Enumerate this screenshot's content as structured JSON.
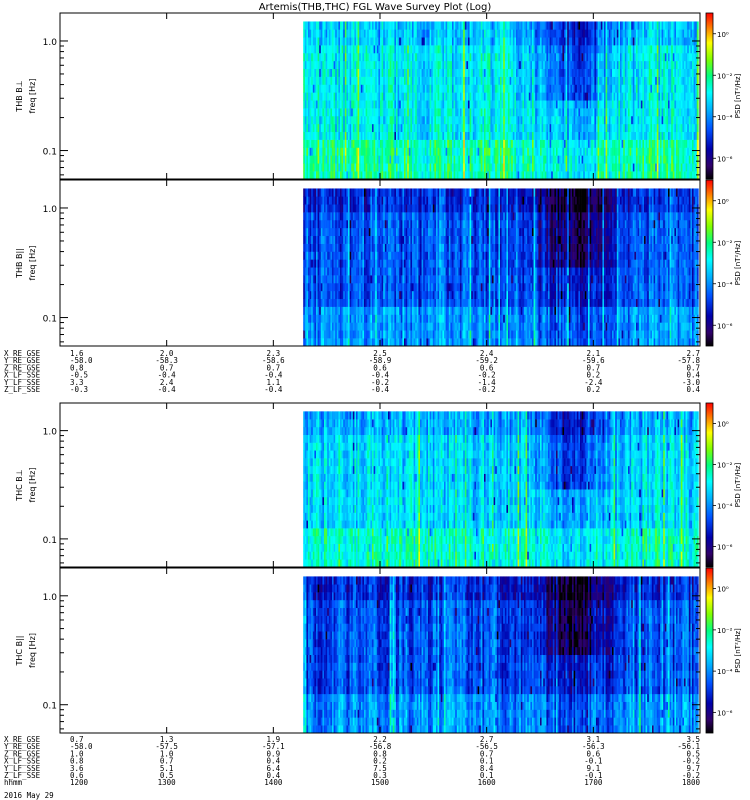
{
  "chart_data": {
    "type": "heatmap",
    "title": "Artemis(THB,THC) FGL Wave Survey Plot (Log)",
    "y_scale": "log",
    "ylim": [
      0.055,
      1.8
    ],
    "y_tick_labels": [
      "1.0",
      "0.1"
    ],
    "y_ticks": [
      1.0,
      0.1
    ],
    "colorbar": {
      "label": "PSD [nT²/Hz]",
      "scale": "log",
      "tick_labels": [
        "10⁰",
        "10⁻²",
        "10⁻⁴",
        "10⁻⁶"
      ],
      "tick_values": [
        1,
        0.01,
        0.0001,
        1e-06
      ],
      "colormap": [
        "#000000",
        "#30006a",
        "#0000aa",
        "#0050ff",
        "#00b4ff",
        "#00ffff",
        "#00ff80",
        "#80ff00",
        "#ffff00",
        "#ff8000",
        "#ff0000"
      ]
    },
    "panels": [
      {
        "ylabel_probe": "THB B⊥",
        "ylabel_unit": "freq [Hz]",
        "data_start_fraction": 0.38,
        "base_level": 0.5
      },
      {
        "ylabel_probe": "THB B||",
        "ylabel_unit": "freq [Hz]",
        "data_start_fraction": 0.38,
        "base_level": 0.3
      },
      {
        "ylabel_probe": "THC B⊥",
        "ylabel_unit": "freq [Hz]",
        "data_start_fraction": 0.38,
        "base_level": 0.48
      },
      {
        "ylabel_probe": "THC B||",
        "ylabel_unit": "freq [Hz]",
        "data_start_fraction": 0.38,
        "base_level": 0.3
      }
    ],
    "orbit_tables": [
      {
        "rows": [
          {
            "label": "X_RE_GSE",
            "values": [
              "1.6",
              "2.0",
              "2.3",
              "2.5",
              "2.4",
              "2.1",
              "2.7"
            ]
          },
          {
            "label": "Y_RE_GSE",
            "values": [
              "-58.0",
              "-58.3",
              "-58.6",
              "-58.9",
              "-59.2",
              "-59.6",
              "-57.8"
            ]
          },
          {
            "label": "Z_RE_GSE",
            "values": [
              "0.8",
              "0.7",
              "0.7",
              "0.6",
              "0.6",
              "0.7",
              "0.7"
            ]
          },
          {
            "label": "X_LF_SSE",
            "values": [
              "-0.5",
              "-0.4",
              "-0.4",
              "-0.4",
              "-0.2",
              "0.2",
              "0.4"
            ]
          },
          {
            "label": "Y_LF_SSE",
            "values": [
              "3.3",
              "2.4",
              "1.1",
              "-0.2",
              "-1.4",
              "-2.4",
              "-3.0"
            ]
          },
          {
            "label": "Z_LF_SSE",
            "values": [
              "-0.3",
              "-0.4",
              "-0.4",
              "-0.4",
              "-0.2",
              "0.2",
              "0.4"
            ]
          }
        ]
      },
      {
        "rows": [
          {
            "label": "X_RE_GSE",
            "values": [
              "0.7",
              "1.3",
              "1.9",
              "2.2",
              "2.7",
              "3.1",
              "3.5"
            ]
          },
          {
            "label": "Y_RE_GSE",
            "values": [
              "-58.0",
              "-57.5",
              "-57.1",
              "-56.8",
              "-56.5",
              "-56.3",
              "-56.1"
            ]
          },
          {
            "label": "Z_RE_GSE",
            "values": [
              "1.0",
              "1.0",
              "0.9",
              "0.8",
              "0.7",
              "0.6",
              "0.5"
            ]
          },
          {
            "label": "X_LF_SSE",
            "values": [
              "0.8",
              "0.7",
              "0.4",
              "0.2",
              "0.1",
              "-0.1",
              "-0.2"
            ]
          },
          {
            "label": "Y_LF_SSE",
            "values": [
              "3.6",
              "5.1",
              "6.4",
              "7.5",
              "8.4",
              "9.1",
              "9.7"
            ]
          },
          {
            "label": "Z_LF_SSE",
            "values": [
              "0.6",
              "0.5",
              "0.4",
              "0.3",
              "0.1",
              "-0.1",
              "-0.2"
            ]
          },
          {
            "label": "hhmm",
            "values": [
              "1200",
              "1300",
              "1400",
              "1500",
              "1600",
              "1700",
              "1800"
            ]
          }
        ]
      }
    ],
    "date_label": "2016 May 29"
  }
}
